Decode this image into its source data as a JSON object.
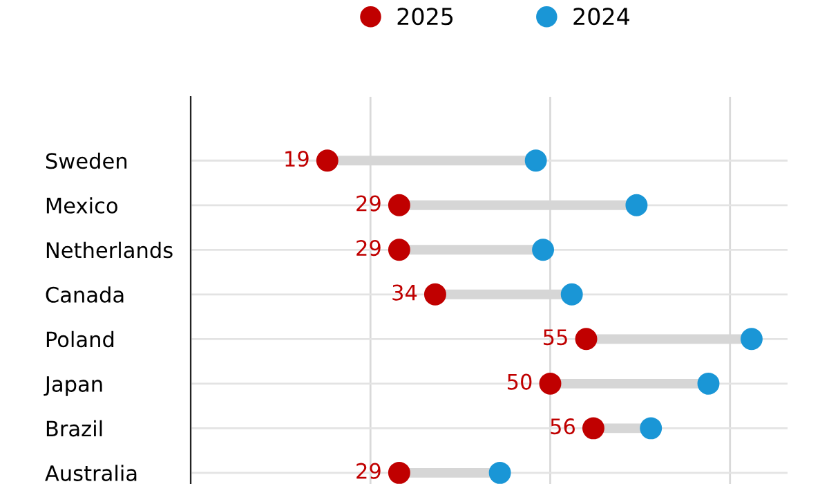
{
  "chart_data": {
    "type": "scatter",
    "categories": [
      "Sweden",
      "Mexico",
      "Netherlands",
      "Canada",
      "Poland",
      "Japan",
      "Brazil",
      "Australia"
    ],
    "orientation": "horizontal",
    "series": [
      {
        "name": "2025",
        "color": "#c00000",
        "values": [
          19,
          29,
          29,
          34,
          55,
          50,
          56,
          29
        ],
        "value_labels": [
          "19",
          "29",
          "29",
          "34",
          "55",
          "50",
          "56",
          "29"
        ]
      },
      {
        "name": "2024",
        "color": "#1a96d6",
        "values": [
          48,
          62,
          49,
          53,
          78,
          72,
          64,
          43
        ]
      }
    ],
    "xlim": [
      0,
      83
    ],
    "xticks": [
      {
        "value": 0,
        "label": null
      },
      {
        "value": 25,
        "label": null
      },
      {
        "value": 50,
        "label": null
      },
      {
        "value": 75,
        "label": null
      }
    ],
    "grid": true,
    "legend": "top",
    "tick_labels": "y",
    "marker": "circle"
  }
}
